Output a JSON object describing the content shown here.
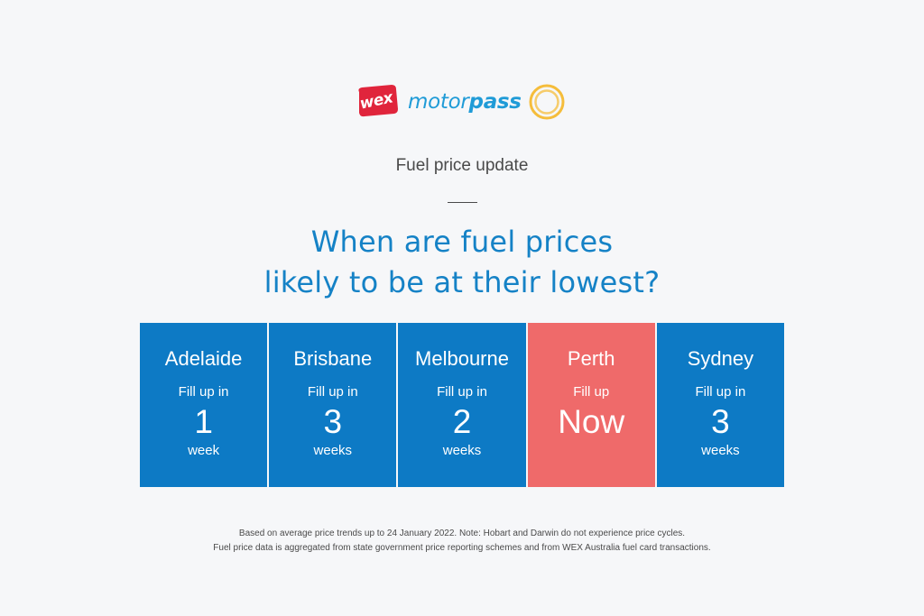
{
  "brand": {
    "wex": "wex",
    "motorpass_prefix": "motor",
    "motorpass_suffix": "pass",
    "colors": {
      "wex_red": "#e0253c",
      "motorpass_blue": "#1f9bd7",
      "ring_yellow": "#f5bd3b"
    }
  },
  "subtitle": "Fuel price update",
  "headline": {
    "line1": "When are fuel prices",
    "line2": "likely to be at their lowest?"
  },
  "cities": [
    {
      "city": "Adelaide",
      "fill_label": "Fill up in",
      "value": "1",
      "unit": "week",
      "highlight": false
    },
    {
      "city": "Brisbane",
      "fill_label": "Fill up in",
      "value": "3",
      "unit": "weeks",
      "highlight": false
    },
    {
      "city": "Melbourne",
      "fill_label": "Fill up in",
      "value": "2",
      "unit": "weeks",
      "highlight": false
    },
    {
      "city": "Perth",
      "fill_label": "Fill up",
      "value": "Now",
      "unit": "",
      "highlight": true
    },
    {
      "city": "Sydney",
      "fill_label": "Fill up in",
      "value": "3",
      "unit": "weeks",
      "highlight": false
    }
  ],
  "colors": {
    "card_blue": "#0d7ac5",
    "card_highlight": "#ef6a6a",
    "headline_blue": "#1582c6",
    "background": "#f6f7f9"
  },
  "footnote": {
    "line1": "Based on average price trends up to 24 January 2022. Note: Hobart and Darwin do not experience price cycles.",
    "line2": "Fuel price data is aggregated from state government price reporting schemes and from WEX Australia fuel card transactions."
  }
}
